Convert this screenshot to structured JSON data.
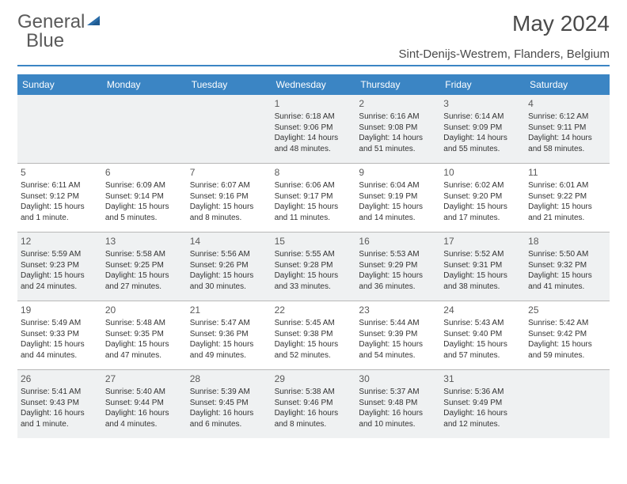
{
  "logo": {
    "text1": "General",
    "text2": "Blue"
  },
  "title": "May 2024",
  "location": "Sint-Denijs-Westrem, Flanders, Belgium",
  "colors": {
    "header_bg": "#3b85c4",
    "header_text": "#ffffff",
    "shade_bg": "#eff1f2",
    "text": "#333333",
    "border": "#b8b8b8",
    "logo_tri": "#2a6ca8"
  },
  "day_headers": [
    "Sunday",
    "Monday",
    "Tuesday",
    "Wednesday",
    "Thursday",
    "Friday",
    "Saturday"
  ],
  "weeks": [
    [
      {
        "day": "",
        "sunrise": "",
        "sunset": "",
        "daylight1": "",
        "daylight2": ""
      },
      {
        "day": "",
        "sunrise": "",
        "sunset": "",
        "daylight1": "",
        "daylight2": ""
      },
      {
        "day": "",
        "sunrise": "",
        "sunset": "",
        "daylight1": "",
        "daylight2": ""
      },
      {
        "day": "1",
        "sunrise": "Sunrise: 6:18 AM",
        "sunset": "Sunset: 9:06 PM",
        "daylight1": "Daylight: 14 hours",
        "daylight2": "and 48 minutes."
      },
      {
        "day": "2",
        "sunrise": "Sunrise: 6:16 AM",
        "sunset": "Sunset: 9:08 PM",
        "daylight1": "Daylight: 14 hours",
        "daylight2": "and 51 minutes."
      },
      {
        "day": "3",
        "sunrise": "Sunrise: 6:14 AM",
        "sunset": "Sunset: 9:09 PM",
        "daylight1": "Daylight: 14 hours",
        "daylight2": "and 55 minutes."
      },
      {
        "day": "4",
        "sunrise": "Sunrise: 6:12 AM",
        "sunset": "Sunset: 9:11 PM",
        "daylight1": "Daylight: 14 hours",
        "daylight2": "and 58 minutes."
      }
    ],
    [
      {
        "day": "5",
        "sunrise": "Sunrise: 6:11 AM",
        "sunset": "Sunset: 9:12 PM",
        "daylight1": "Daylight: 15 hours",
        "daylight2": "and 1 minute."
      },
      {
        "day": "6",
        "sunrise": "Sunrise: 6:09 AM",
        "sunset": "Sunset: 9:14 PM",
        "daylight1": "Daylight: 15 hours",
        "daylight2": "and 5 minutes."
      },
      {
        "day": "7",
        "sunrise": "Sunrise: 6:07 AM",
        "sunset": "Sunset: 9:16 PM",
        "daylight1": "Daylight: 15 hours",
        "daylight2": "and 8 minutes."
      },
      {
        "day": "8",
        "sunrise": "Sunrise: 6:06 AM",
        "sunset": "Sunset: 9:17 PM",
        "daylight1": "Daylight: 15 hours",
        "daylight2": "and 11 minutes."
      },
      {
        "day": "9",
        "sunrise": "Sunrise: 6:04 AM",
        "sunset": "Sunset: 9:19 PM",
        "daylight1": "Daylight: 15 hours",
        "daylight2": "and 14 minutes."
      },
      {
        "day": "10",
        "sunrise": "Sunrise: 6:02 AM",
        "sunset": "Sunset: 9:20 PM",
        "daylight1": "Daylight: 15 hours",
        "daylight2": "and 17 minutes."
      },
      {
        "day": "11",
        "sunrise": "Sunrise: 6:01 AM",
        "sunset": "Sunset: 9:22 PM",
        "daylight1": "Daylight: 15 hours",
        "daylight2": "and 21 minutes."
      }
    ],
    [
      {
        "day": "12",
        "sunrise": "Sunrise: 5:59 AM",
        "sunset": "Sunset: 9:23 PM",
        "daylight1": "Daylight: 15 hours",
        "daylight2": "and 24 minutes."
      },
      {
        "day": "13",
        "sunrise": "Sunrise: 5:58 AM",
        "sunset": "Sunset: 9:25 PM",
        "daylight1": "Daylight: 15 hours",
        "daylight2": "and 27 minutes."
      },
      {
        "day": "14",
        "sunrise": "Sunrise: 5:56 AM",
        "sunset": "Sunset: 9:26 PM",
        "daylight1": "Daylight: 15 hours",
        "daylight2": "and 30 minutes."
      },
      {
        "day": "15",
        "sunrise": "Sunrise: 5:55 AM",
        "sunset": "Sunset: 9:28 PM",
        "daylight1": "Daylight: 15 hours",
        "daylight2": "and 33 minutes."
      },
      {
        "day": "16",
        "sunrise": "Sunrise: 5:53 AM",
        "sunset": "Sunset: 9:29 PM",
        "daylight1": "Daylight: 15 hours",
        "daylight2": "and 36 minutes."
      },
      {
        "day": "17",
        "sunrise": "Sunrise: 5:52 AM",
        "sunset": "Sunset: 9:31 PM",
        "daylight1": "Daylight: 15 hours",
        "daylight2": "and 38 minutes."
      },
      {
        "day": "18",
        "sunrise": "Sunrise: 5:50 AM",
        "sunset": "Sunset: 9:32 PM",
        "daylight1": "Daylight: 15 hours",
        "daylight2": "and 41 minutes."
      }
    ],
    [
      {
        "day": "19",
        "sunrise": "Sunrise: 5:49 AM",
        "sunset": "Sunset: 9:33 PM",
        "daylight1": "Daylight: 15 hours",
        "daylight2": "and 44 minutes."
      },
      {
        "day": "20",
        "sunrise": "Sunrise: 5:48 AM",
        "sunset": "Sunset: 9:35 PM",
        "daylight1": "Daylight: 15 hours",
        "daylight2": "and 47 minutes."
      },
      {
        "day": "21",
        "sunrise": "Sunrise: 5:47 AM",
        "sunset": "Sunset: 9:36 PM",
        "daylight1": "Daylight: 15 hours",
        "daylight2": "and 49 minutes."
      },
      {
        "day": "22",
        "sunrise": "Sunrise: 5:45 AM",
        "sunset": "Sunset: 9:38 PM",
        "daylight1": "Daylight: 15 hours",
        "daylight2": "and 52 minutes."
      },
      {
        "day": "23",
        "sunrise": "Sunrise: 5:44 AM",
        "sunset": "Sunset: 9:39 PM",
        "daylight1": "Daylight: 15 hours",
        "daylight2": "and 54 minutes."
      },
      {
        "day": "24",
        "sunrise": "Sunrise: 5:43 AM",
        "sunset": "Sunset: 9:40 PM",
        "daylight1": "Daylight: 15 hours",
        "daylight2": "and 57 minutes."
      },
      {
        "day": "25",
        "sunrise": "Sunrise: 5:42 AM",
        "sunset": "Sunset: 9:42 PM",
        "daylight1": "Daylight: 15 hours",
        "daylight2": "and 59 minutes."
      }
    ],
    [
      {
        "day": "26",
        "sunrise": "Sunrise: 5:41 AM",
        "sunset": "Sunset: 9:43 PM",
        "daylight1": "Daylight: 16 hours",
        "daylight2": "and 1 minute."
      },
      {
        "day": "27",
        "sunrise": "Sunrise: 5:40 AM",
        "sunset": "Sunset: 9:44 PM",
        "daylight1": "Daylight: 16 hours",
        "daylight2": "and 4 minutes."
      },
      {
        "day": "28",
        "sunrise": "Sunrise: 5:39 AM",
        "sunset": "Sunset: 9:45 PM",
        "daylight1": "Daylight: 16 hours",
        "daylight2": "and 6 minutes."
      },
      {
        "day": "29",
        "sunrise": "Sunrise: 5:38 AM",
        "sunset": "Sunset: 9:46 PM",
        "daylight1": "Daylight: 16 hours",
        "daylight2": "and 8 minutes."
      },
      {
        "day": "30",
        "sunrise": "Sunrise: 5:37 AM",
        "sunset": "Sunset: 9:48 PM",
        "daylight1": "Daylight: 16 hours",
        "daylight2": "and 10 minutes."
      },
      {
        "day": "31",
        "sunrise": "Sunrise: 5:36 AM",
        "sunset": "Sunset: 9:49 PM",
        "daylight1": "Daylight: 16 hours",
        "daylight2": "and 12 minutes."
      },
      {
        "day": "",
        "sunrise": "",
        "sunset": "",
        "daylight1": "",
        "daylight2": ""
      }
    ]
  ]
}
